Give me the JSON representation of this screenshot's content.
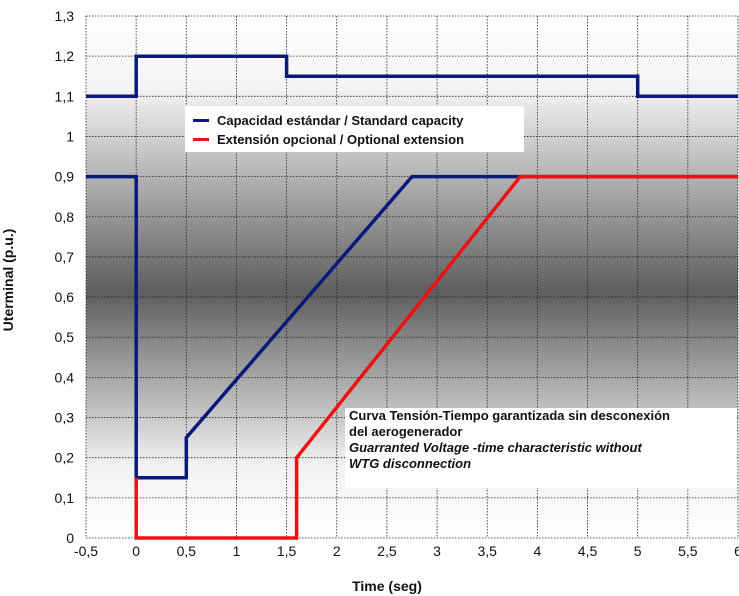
{
  "chart_data": {
    "type": "line",
    "xlabel": "Time (seg)",
    "ylabel": "Uterminal (p.u.)",
    "xlim": [
      -0.5,
      6
    ],
    "ylim": [
      0,
      1.3
    ],
    "x_ticks": [
      "-0,5",
      "0",
      "0,5",
      "1",
      "1,5",
      "2",
      "2,5",
      "3",
      "3,5",
      "4",
      "4,5",
      "5",
      "5,5",
      "6"
    ],
    "y_ticks": [
      "0",
      "0,1",
      "0,2",
      "0,3",
      "0,4",
      "0,5",
      "0,6",
      "0,7",
      "0,8",
      "0,9",
      "1",
      "1,1",
      "1,2",
      "1,3"
    ],
    "grid": true,
    "legend_position": "top-left",
    "series": [
      {
        "name": "Capacidad estándar / Standard capacity",
        "color": "#0a1a7a",
        "segments": [
          [
            [
              -0.5,
              1.1
            ],
            [
              0,
              1.1
            ],
            [
              0,
              1.2
            ],
            [
              1.5,
              1.2
            ],
            [
              1.5,
              1.15
            ],
            [
              5,
              1.15
            ],
            [
              5,
              1.1
            ],
            [
              6,
              1.1
            ]
          ],
          [
            [
              -0.5,
              0.9
            ],
            [
              0,
              0.9
            ],
            [
              0,
              0.15
            ],
            [
              0.5,
              0.15
            ],
            [
              0.5,
              0.25
            ],
            [
              2.75,
              0.9
            ],
            [
              6,
              0.9
            ]
          ]
        ]
      },
      {
        "name": "Extensión opcional / Optional extension",
        "color": "#ee1111",
        "segments": [
          [
            [
              0,
              0.15
            ],
            [
              0,
              0
            ],
            [
              1.6,
              0
            ],
            [
              1.6,
              0.2
            ],
            [
              3.83,
              0.9
            ],
            [
              6,
              0.9
            ]
          ]
        ]
      }
    ],
    "annotation": [
      "Curva Tensión-Tiempo garantizada sin desconexión",
      "del aerogenerador",
      "Guarranted Voltage -time characteristic without",
      "WTG disconnection"
    ]
  }
}
